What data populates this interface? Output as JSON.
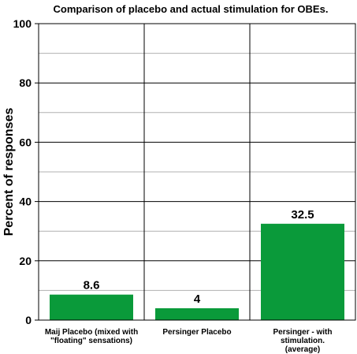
{
  "chart_data": {
    "type": "bar",
    "title": "Comparison of placebo and actual stimulation for OBEs.",
    "ylabel": "Percent of responses",
    "xlabel": "",
    "ylim": [
      0,
      100
    ],
    "yticks": [
      0,
      20,
      40,
      60,
      80,
      100
    ],
    "categories": [
      [
        "Maij Placebo (mixed with",
        "\"floating\" sensations)"
      ],
      [
        "Persinger Placebo"
      ],
      [
        "Persinger - with",
        "stimulation.",
        "(average)"
      ]
    ],
    "values": [
      8.6,
      4,
      32.5
    ],
    "data_labels": [
      "8.6",
      "4",
      "32.5"
    ],
    "bar_color": "#0a9a3a",
    "grid": true,
    "legend": "none"
  }
}
